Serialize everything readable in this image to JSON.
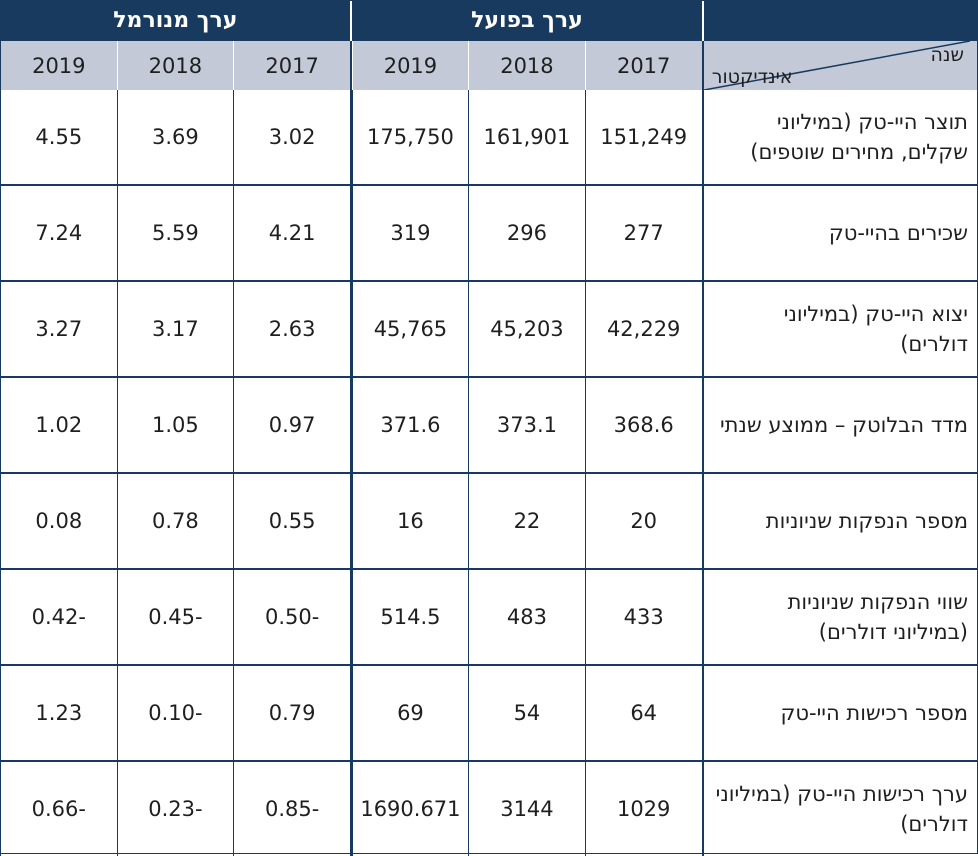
{
  "header": {
    "group_actual": "ערך בפועל",
    "group_normalized": "ערך מנורמל",
    "corner_year_label": "שנה",
    "corner_indicator_label": "אינדיקטור",
    "years": [
      "2017",
      "2018",
      "2019"
    ]
  },
  "rows": [
    {
      "indicator": "תוצר היי-טק (במיליוני שקלים, מחירים שוטפים)",
      "actual": [
        "151,249",
        "161,901",
        "175,750"
      ],
      "normalized": [
        "3.02",
        "3.69",
        "4.55"
      ]
    },
    {
      "indicator": "שכירים בהיי-טק",
      "actual": [
        "277",
        "296",
        "319"
      ],
      "normalized": [
        "4.21",
        "5.59",
        "7.24"
      ]
    },
    {
      "indicator": "יצוא היי-טק (במיליוני דולרים)",
      "actual": [
        "42,229",
        "45,203",
        "45,765"
      ],
      "normalized": [
        "2.63",
        "3.17",
        "3.27"
      ]
    },
    {
      "indicator": "מדד הבלוטק – ממוצע שנתי",
      "actual": [
        "368.6",
        "373.1",
        "371.6"
      ],
      "normalized": [
        "0.97",
        "1.05",
        "1.02"
      ]
    },
    {
      "indicator": "מספר הנפקות שניוניות",
      "actual": [
        "20",
        "22",
        "16"
      ],
      "normalized": [
        "0.55",
        "0.78",
        "0.08"
      ]
    },
    {
      "indicator": "שווי הנפקות שניוניות (במיליוני דולרים)",
      "actual": [
        "433",
        "483",
        "514.5"
      ],
      "normalized": [
        "-0.50",
        "-0.45",
        "-0.42"
      ]
    },
    {
      "indicator": "מספר רכישות היי-טק",
      "actual": [
        "64",
        "54",
        "69"
      ],
      "normalized": [
        "0.79",
        "-0.10",
        "1.23"
      ]
    },
    {
      "indicator": "ערך רכישות היי-טק (במיליוני דולרים)",
      "actual": [
        "1029",
        "3144",
        "1690.671"
      ],
      "normalized": [
        "-0.85",
        "-0.23",
        "-0.66"
      ]
    }
  ],
  "colors": {
    "header_dark": "#173a5e",
    "header_light": "#c3c9d6"
  }
}
